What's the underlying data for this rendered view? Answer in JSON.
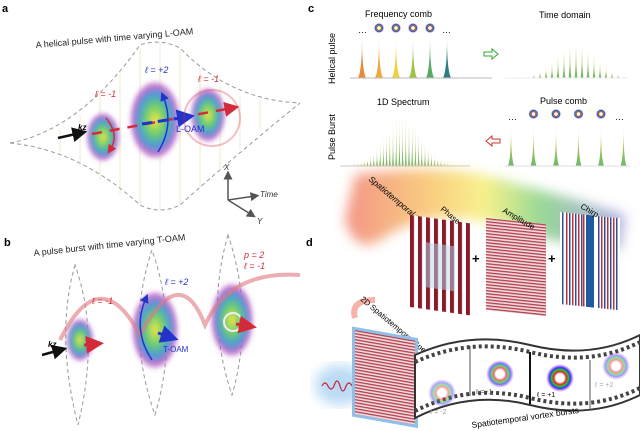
{
  "panels": {
    "a": {
      "label": "a",
      "title": "A helical pulse with time varying L-OAM",
      "l_left": "ℓ = -1",
      "l_mid": "ℓ = +2",
      "l_right": "ℓ = -1",
      "kz": "kz",
      "oam": "L-OAM",
      "axis_x": "X",
      "axis_time": "Time",
      "axis_y": "Y"
    },
    "b": {
      "label": "b",
      "title": "A pulse burst with time varying T-OAM",
      "l_left": "ℓ = -1",
      "l_mid": "ℓ = +2",
      "p_right": "p = 2",
      "l_right": "ℓ = -1",
      "kz": "kz",
      "oam": "T-OAM"
    },
    "c": {
      "label": "c",
      "row1_label": "Helical pulse",
      "row2_label": "Pulse Burst",
      "frequency_comb": "Frequency comb",
      "time_domain": "Time domain",
      "spectrum_1d": "1D Spectrum",
      "pulse_comb": "Pulse comb",
      "ellipsis": "…"
    },
    "d": {
      "label": "d",
      "multiplexing": "Spatiotemporal multiplexing",
      "phase": "Phase",
      "amplitude": "Amplitude",
      "chirp": "Chirp",
      "plus": "+",
      "spectra": "2D Spatiotemporal Spectra",
      "bursts": "Spatiotemporal vortex bursts",
      "frames": [
        "ℓ = -2",
        "ℓ = -1",
        "ℓ = +1",
        "ℓ = +2"
      ]
    }
  },
  "colors": {
    "red": "#d42b3a",
    "blue": "#2233cc",
    "envelope": "#888888"
  }
}
